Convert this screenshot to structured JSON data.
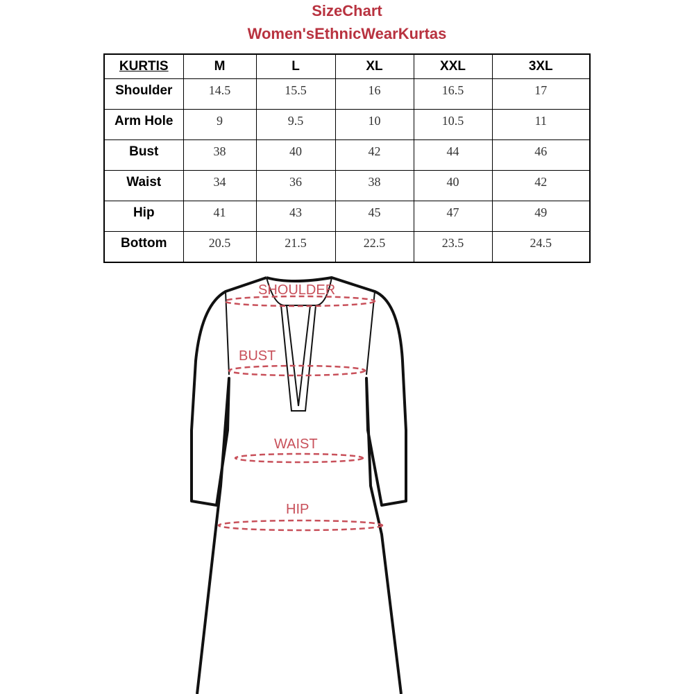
{
  "title": "SizeChart",
  "subtitle": "Women'sEthnicWearKurtas",
  "table": {
    "corner": "KURTIS",
    "sizes": [
      "M",
      "L",
      "XL",
      "XXL",
      "3XL"
    ],
    "rows": [
      {
        "label": "Shoulder",
        "values": [
          "14.5",
          "15.5",
          "16",
          "16.5",
          "17"
        ]
      },
      {
        "label": "Arm Hole",
        "values": [
          "9",
          "9.5",
          "10",
          "10.5",
          "11"
        ]
      },
      {
        "label": "Bust",
        "values": [
          "38",
          "40",
          "42",
          "44",
          "46"
        ]
      },
      {
        "label": "Waist",
        "values": [
          "34",
          "36",
          "38",
          "40",
          "42"
        ]
      },
      {
        "label": "Hip",
        "values": [
          "41",
          "43",
          "45",
          "47",
          "49"
        ]
      },
      {
        "label": "Bottom",
        "values": [
          "20.5",
          "21.5",
          "22.5",
          "23.5",
          "24.5"
        ]
      }
    ]
  },
  "diagram": {
    "labels": {
      "shoulder": "SHOULDER",
      "bust": "BUST",
      "waist": "WAIST",
      "hip": "HIP"
    },
    "accent_color": "#c8505a"
  }
}
